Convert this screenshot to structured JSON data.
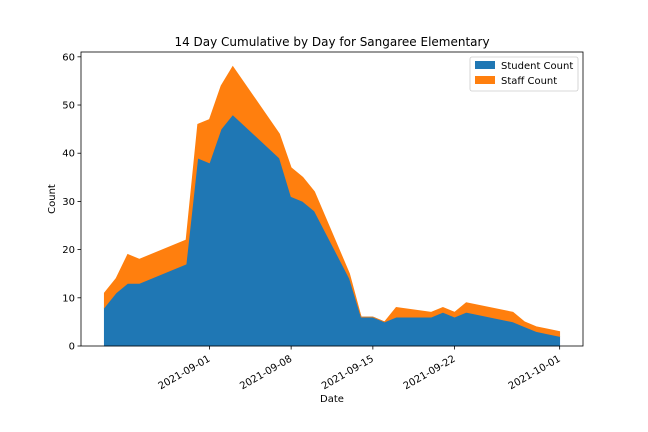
{
  "colors": {
    "student": "#1f77b4",
    "staff": "#ff7f0e",
    "axis": "#000000",
    "background": "#ffffff"
  },
  "chart_data": {
    "type": "area",
    "stacked": true,
    "title": "14 Day Cumulative by Day for Sangaree Elementary",
    "xlabel": "Date",
    "ylabel": "Count",
    "x": [
      "2021-08-23",
      "2021-08-24",
      "2021-08-25",
      "2021-08-26",
      "2021-08-30",
      "2021-08-31",
      "2021-09-01",
      "2021-09-02",
      "2021-09-03",
      "2021-09-07",
      "2021-09-08",
      "2021-09-09",
      "2021-09-10",
      "2021-09-13",
      "2021-09-14",
      "2021-09-15",
      "2021-09-16",
      "2021-09-17",
      "2021-09-20",
      "2021-09-21",
      "2021-09-22",
      "2021-09-23",
      "2021-09-27",
      "2021-09-28",
      "2021-09-29",
      "2021-09-30",
      "2021-10-01"
    ],
    "series": [
      {
        "name": "Student Count",
        "values": [
          8,
          11,
          13,
          13,
          17,
          39,
          38,
          45,
          48,
          39,
          31,
          30,
          28,
          14,
          6,
          6,
          5,
          6,
          6,
          7,
          6,
          7,
          5,
          4,
          3,
          2.5,
          2
        ]
      },
      {
        "name": "Staff Count",
        "values": [
          3,
          3,
          6,
          5,
          5,
          7,
          9,
          9,
          10,
          5,
          6,
          5,
          4,
          1,
          0,
          0,
          0,
          2,
          1,
          1,
          1,
          2,
          2,
          1,
          1,
          1,
          1
        ]
      }
    ],
    "xticks": [
      "2021-09-01",
      "2021-09-08",
      "2021-09-15",
      "2021-09-22",
      "2021-10-01"
    ],
    "yticks": [
      0,
      10,
      20,
      30,
      40,
      50,
      60
    ],
    "xlim": [
      "2021-08-21",
      "2021-10-03"
    ],
    "ylim": [
      0,
      61
    ],
    "legend": {
      "placement": "upper-right",
      "entries": [
        "Student Count",
        "Staff Count"
      ]
    },
    "grid": false
  }
}
